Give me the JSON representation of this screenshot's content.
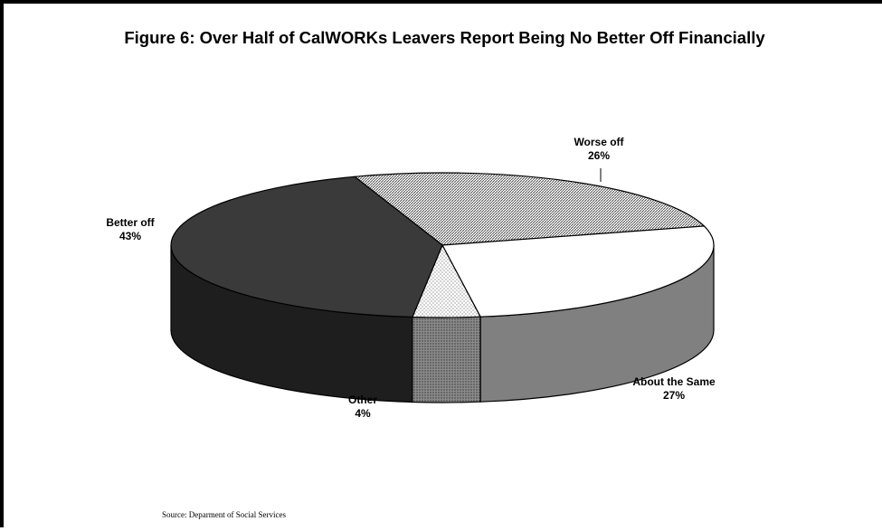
{
  "chart_data": {
    "type": "pie",
    "title": "Figure 6: Over Half of CalWORKs Leavers Report Being No Better Off Financially",
    "slices": [
      {
        "label": "Worse off",
        "value": 26,
        "value_label": "26%",
        "color": "#dcdcdc",
        "pattern": "diagonal-hatch"
      },
      {
        "label": "About the Same",
        "value": 27,
        "value_label": "27%",
        "color": "#ffffff",
        "pattern": "none"
      },
      {
        "label": "Other",
        "value": 4,
        "value_label": "4%",
        "color": "#f4f4f4",
        "pattern": "dots"
      },
      {
        "label": "Better off",
        "value": 43,
        "value_label": "43%",
        "color": "#3a3a3a",
        "pattern": "none"
      }
    ],
    "style": "3d-pie"
  },
  "source": "Source: Deparment of Social Services"
}
